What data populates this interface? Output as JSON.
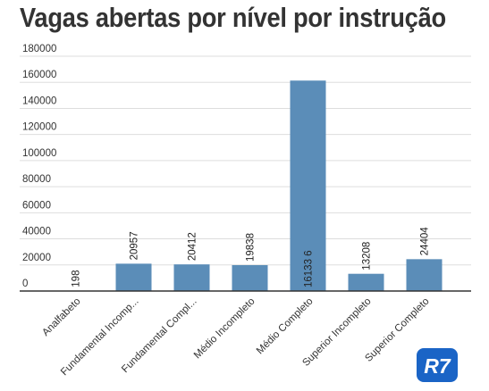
{
  "chart_data": {
    "type": "bar",
    "title": "Vagas abertas por nível por instrução",
    "categories": [
      "Analfabeto",
      "Fundamental Incomp...",
      "Fundamental Compl...",
      "Médio Incompleto",
      "Médio Completo",
      "Superior Incompleto",
      "Superior Completo"
    ],
    "values": [
      198,
      20957,
      20412,
      19838,
      161336,
      13208,
      24404
    ],
    "value_labels": [
      "198",
      "20957",
      "20412",
      "19838",
      "16133 6",
      "13208",
      "24404"
    ],
    "y_ticks": [
      "0",
      "20000",
      "40000",
      "60000",
      "80000",
      "100000",
      "120000",
      "140000",
      "160000",
      "180000"
    ],
    "ylim": [
      0,
      180000
    ],
    "xlabel": "",
    "ylabel": "",
    "grid": true,
    "legend": "none",
    "colors": {
      "bar": "#5b8db8",
      "grid": "#dddddd",
      "axis": "#333333",
      "text": "#333333"
    }
  },
  "logo": {
    "text": "R7",
    "color": "#1a64c6"
  }
}
